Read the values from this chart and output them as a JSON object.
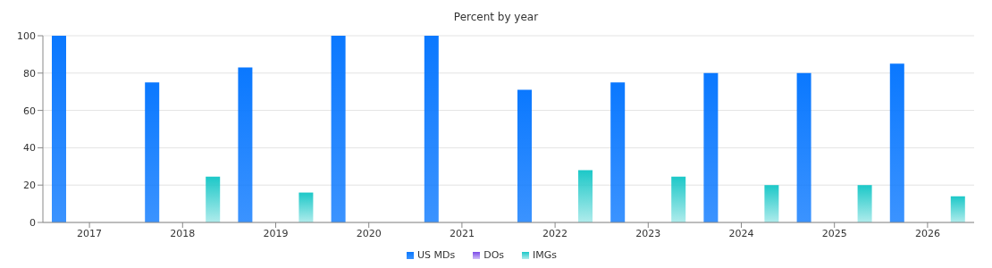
{
  "chart_data": {
    "type": "bar",
    "title": "Percent by year",
    "categories": [
      "2017",
      "2018",
      "2019",
      "2020",
      "2021",
      "2022",
      "2023",
      "2024",
      "2025",
      "2026"
    ],
    "series": [
      {
        "name": "US MDs",
        "color": "#0a78ff",
        "values": [
          100,
          75,
          83,
          100,
          100,
          71,
          75,
          80,
          80,
          85
        ]
      },
      {
        "name": "DOs",
        "color": "#7b4ae8",
        "values": [
          0,
          0,
          0,
          0,
          0,
          0,
          0,
          0,
          0,
          0
        ]
      },
      {
        "name": "IMGs",
        "color": "#1cc8c8",
        "values": [
          0,
          24.5,
          16,
          0,
          0,
          28,
          24.5,
          20,
          20,
          14
        ]
      }
    ],
    "ylim": [
      0,
      100
    ],
    "yticks": [
      0,
      20,
      40,
      60,
      80,
      100
    ],
    "grid": "y",
    "legend": "bottom"
  }
}
